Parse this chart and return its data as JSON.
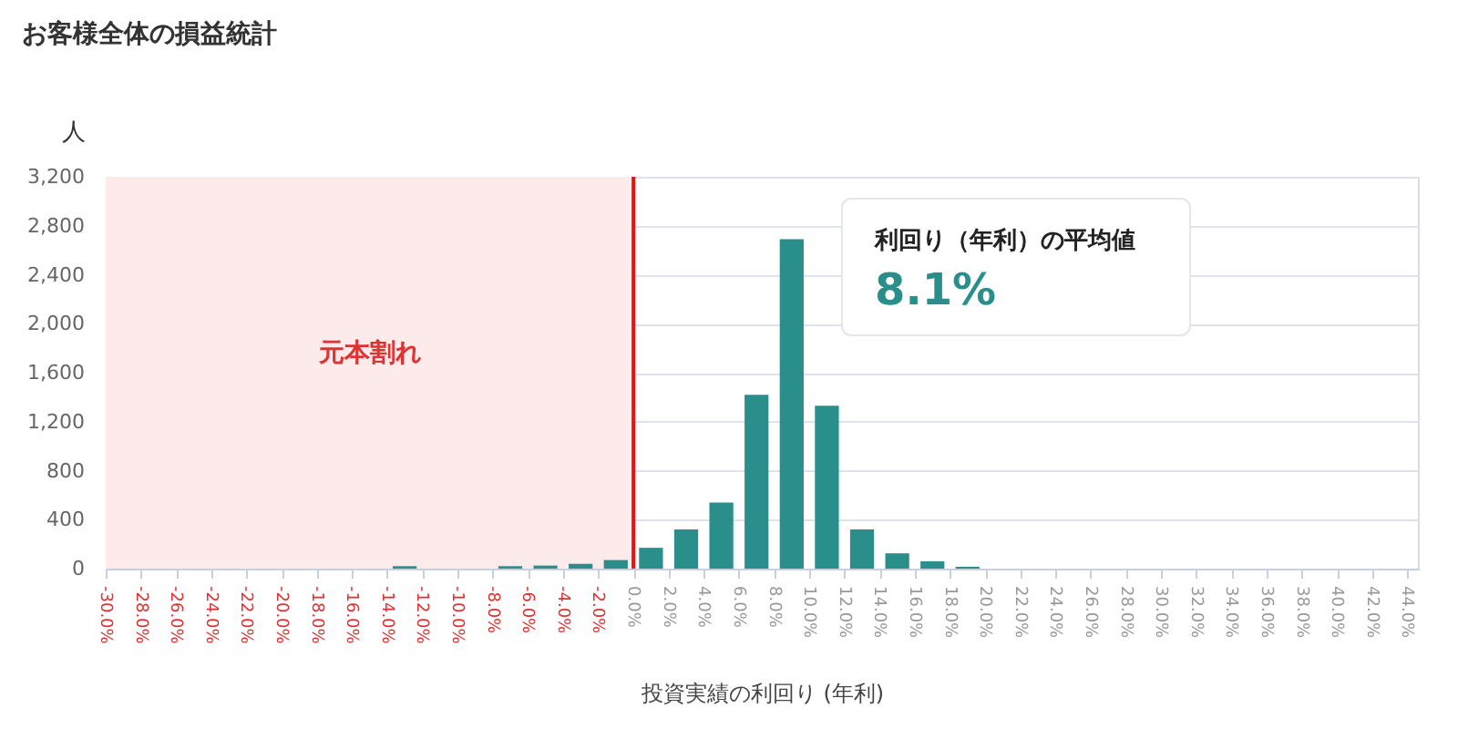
{
  "chart_data": {
    "type": "histogram",
    "title": "お客様全体の損益統計",
    "xlabel": "投資実績の利回り (年利)",
    "ylabel": "人",
    "bins": [
      -30,
      -28,
      -26,
      -24,
      -22,
      -20,
      -18,
      -16,
      -14,
      -12,
      -10,
      -8,
      -6,
      -4,
      -2,
      0,
      2,
      4,
      6,
      8,
      10,
      12,
      14,
      16,
      18,
      20,
      22,
      24,
      26,
      28,
      30,
      32,
      34,
      36,
      38,
      40,
      42,
      44
    ],
    "values": [
      0,
      0,
      0,
      0,
      0,
      0,
      0,
      null,
      20,
      null,
      null,
      20,
      25,
      40,
      70,
      170,
      320,
      540,
      1420,
      2690,
      1330,
      320,
      125,
      60,
      15,
      0,
      0,
      0,
      0,
      0,
      0,
      0,
      0,
      0,
      0,
      0,
      0
    ],
    "color": "#2a8f8a",
    "xlim": [
      -30,
      44.6
    ],
    "xticks": [
      {
        "value": -30,
        "label": "-30.0%"
      },
      {
        "value": -28,
        "label": "-28.0%"
      },
      {
        "value": -26,
        "label": "-26.0%"
      },
      {
        "value": -24,
        "label": "-24.0%"
      },
      {
        "value": -22,
        "label": "-22.0%"
      },
      {
        "value": -20,
        "label": "-20.0%"
      },
      {
        "value": -18,
        "label": "-18.0%"
      },
      {
        "value": -16,
        "label": "-16.0%"
      },
      {
        "value": -14,
        "label": "-14.0%"
      },
      {
        "value": -12,
        "label": "-12.0%"
      },
      {
        "value": -10,
        "label": "-10.0%"
      },
      {
        "value": -8,
        "label": "-8.0%"
      },
      {
        "value": -6,
        "label": "-6.0%"
      },
      {
        "value": -4,
        "label": "-4.0%"
      },
      {
        "value": -2,
        "label": "-2.0%"
      },
      {
        "value": 0,
        "label": "0.0%"
      },
      {
        "value": 2,
        "label": "2.0%"
      },
      {
        "value": 4,
        "label": "4.0%"
      },
      {
        "value": 6,
        "label": "6.0%"
      },
      {
        "value": 8,
        "label": "8.0%"
      },
      {
        "value": 10,
        "label": "10.0%"
      },
      {
        "value": 12,
        "label": "12.0%"
      },
      {
        "value": 14,
        "label": "14.0%"
      },
      {
        "value": 16,
        "label": "16.0%"
      },
      {
        "value": 18,
        "label": "18.0%"
      },
      {
        "value": 20,
        "label": "20.0%"
      },
      {
        "value": 22,
        "label": "22.0%"
      },
      {
        "value": 24,
        "label": "24.0%"
      },
      {
        "value": 26,
        "label": "26.0%"
      },
      {
        "value": 28,
        "label": "28.0%"
      },
      {
        "value": 30,
        "label": "30.0%"
      },
      {
        "value": 32,
        "label": "32.0%"
      },
      {
        "value": 34,
        "label": "34.0%"
      },
      {
        "value": 36,
        "label": "36.0%"
      },
      {
        "value": 38,
        "label": "38.0%"
      },
      {
        "value": 40,
        "label": "40.0%"
      },
      {
        "value": 42,
        "label": "42.0%"
      },
      {
        "value": 44,
        "label": "44.0%"
      }
    ],
    "ylim": [
      0,
      3200
    ],
    "yticks": [
      0,
      400,
      800,
      {
        "value": 1200,
        "label": "1,200"
      },
      {
        "value": 1600,
        "label": "1,600"
      },
      {
        "value": 2000,
        "label": "2,000"
      },
      {
        "value": 2400,
        "label": "2,400"
      },
      {
        "value": 2800,
        "label": "2,800"
      },
      {
        "value": 3200,
        "label": "3,200"
      }
    ],
    "grid": "y",
    "bands": [
      {
        "axis": "x",
        "from": -30,
        "to": 0,
        "label": "元本割れ",
        "color": "#fdeaea"
      }
    ],
    "ref_lines": [
      {
        "axis": "x",
        "value": 0,
        "color": "#ee1111",
        "line_style": "solid"
      }
    ],
    "annotations": [
      "利回り（年利）の平均値",
      "8.1%"
    ]
  }
}
